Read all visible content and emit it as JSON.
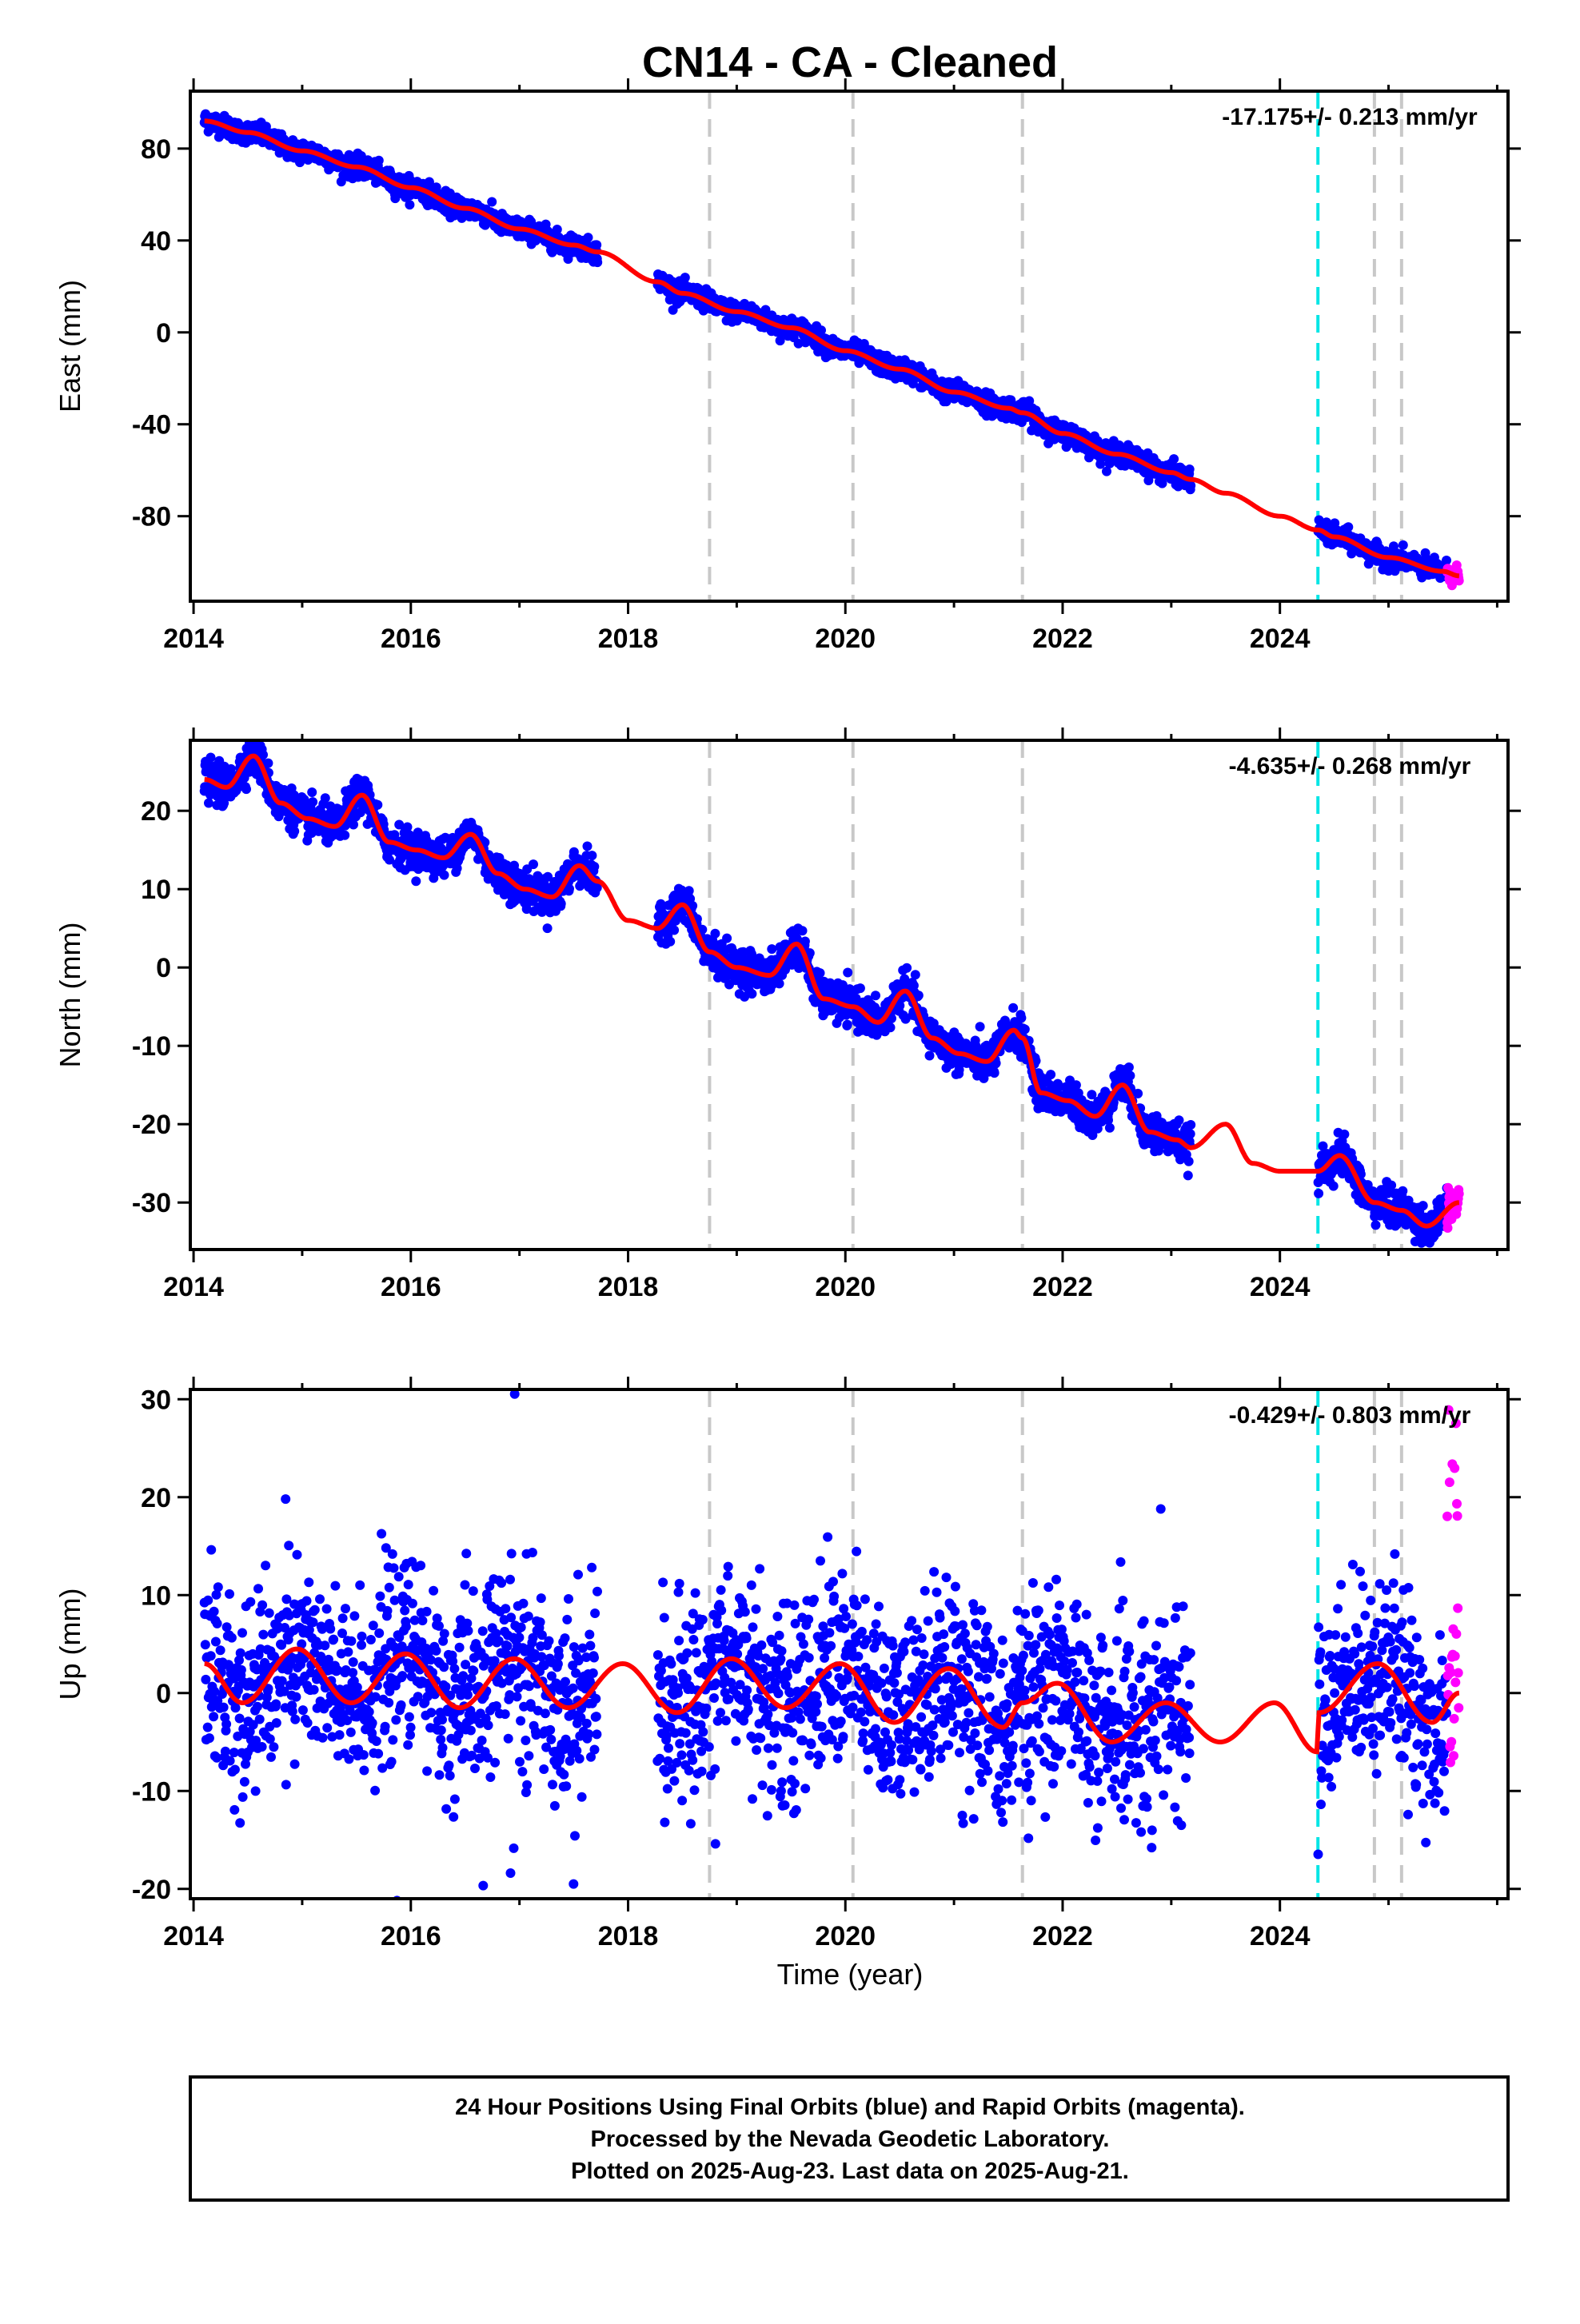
{
  "title": "CN14  - CA - Cleaned",
  "xlabel": "Time (year)",
  "x_ticks": [
    2014,
    2016,
    2018,
    2020,
    2022,
    2024
  ],
  "colors": {
    "final_orbits": "#0000ff",
    "rapid_orbits": "#ff00ff",
    "model": "#ff0000",
    "antenna_change": "#00e5e5",
    "event": "#c8c8c8"
  },
  "event_lines": [
    2018.75,
    2020.07,
    2021.63,
    2024.87,
    2025.12
  ],
  "antenna_line": 2024.35,
  "data_gaps": [
    [
      2017.72,
      2018.27
    ],
    [
      2023.18,
      2024.35
    ]
  ],
  "rapid_start": 2025.54,
  "xlim": [
    2013.97,
    2026.1
  ],
  "footer": {
    "line1": "24 Hour Positions Using Final Orbits (blue) and Rapid Orbits (magenta).",
    "line2": "Processed by the Nevada Geodetic Laboratory.",
    "line3": "Plotted on 2025-Aug-23. Last data on 2025-Aug-21."
  },
  "chart_data": [
    {
      "type": "scatter",
      "component": "east",
      "ylabel": "East (mm)",
      "rate_text": "-17.175+/- 0.213 mm/yr",
      "ylim": [
        -117,
        105
      ],
      "y_ticks": [
        -80,
        -40,
        0,
        40,
        80
      ],
      "noise": 2.2,
      "model": {
        "x": [
          2014.1,
          2014.5,
          2015.0,
          2015.5,
          2016.0,
          2016.5,
          2017.0,
          2017.5,
          2017.72,
          2018.27,
          2018.5,
          2019.0,
          2019.5,
          2020.0,
          2020.5,
          2021.0,
          2021.5,
          2021.63,
          2022.0,
          2022.5,
          2023.0,
          2023.18,
          2023.5,
          2024.0,
          2024.35,
          2024.5,
          2025.0,
          2025.5,
          2025.65
        ],
        "y": [
          92,
          87,
          79,
          72,
          63,
          54,
          45,
          38,
          35,
          22,
          17,
          9,
          2,
          -8,
          -16,
          -26,
          -33,
          -35,
          -44,
          -53,
          -61,
          -64,
          -70,
          -80,
          -86,
          -89,
          -98,
          -104,
          -106
        ]
      }
    },
    {
      "type": "scatter",
      "component": "north",
      "ylabel": "North (mm)",
      "rate_text": "-4.635+/- 0.268 mm/yr",
      "ylim": [
        -36,
        29
      ],
      "y_ticks": [
        -30,
        -20,
        -10,
        0,
        10,
        20
      ],
      "noise": 1.2,
      "model": {
        "x": [
          2014.1,
          2014.3,
          2014.55,
          2014.8,
          2015.05,
          2015.3,
          2015.55,
          2015.8,
          2016.05,
          2016.3,
          2016.55,
          2016.8,
          2017.05,
          2017.3,
          2017.55,
          2017.72,
          2018.0,
          2018.27,
          2018.5,
          2018.75,
          2019.0,
          2019.3,
          2019.55,
          2019.8,
          2020.07,
          2020.3,
          2020.55,
          2020.8,
          2021.05,
          2021.3,
          2021.55,
          2021.63,
          2021.8,
          2022.05,
          2022.3,
          2022.55,
          2022.8,
          2023.05,
          2023.18,
          2023.5,
          2023.75,
          2024.0,
          2024.35,
          2024.55,
          2024.87,
          2025.12,
          2025.35,
          2025.65
        ],
        "y": [
          24,
          23,
          27,
          21,
          19,
          18,
          22,
          16,
          15,
          14,
          17,
          12,
          10,
          9,
          13,
          11,
          6,
          5,
          8,
          2,
          0,
          -1,
          3,
          -4,
          -5,
          -7,
          -3,
          -9,
          -11,
          -12,
          -8,
          -9,
          -16,
          -17,
          -19,
          -15,
          -21,
          -22,
          -23,
          -20,
          -25,
          -26,
          -26,
          -24,
          -30,
          -31,
          -33,
          -30
        ]
      }
    },
    {
      "type": "scatter",
      "component": "up",
      "ylabel": "Up (mm)",
      "rate_text": "-0.429+/- 0.803 mm/yr",
      "ylim": [
        -21,
        31
      ],
      "y_ticks": [
        -20,
        -10,
        0,
        10,
        20,
        30
      ],
      "noise": 4.8,
      "model": {
        "x": [
          2014.1,
          2014.45,
          2014.95,
          2015.45,
          2015.95,
          2016.45,
          2016.95,
          2017.45,
          2017.95,
          2018.45,
          2018.95,
          2019.45,
          2019.95,
          2020.45,
          2020.95,
          2021.45,
          2021.63,
          2021.95,
          2022.45,
          2022.95,
          2023.45,
          2023.95,
          2024.34,
          2024.36,
          2024.9,
          2025.4,
          2025.65
        ],
        "y": [
          3,
          -1,
          4.5,
          -1,
          4,
          -1.5,
          3.5,
          -1.5,
          3,
          -2,
          3.5,
          -1.5,
          3,
          -3,
          2.5,
          -3.5,
          -1,
          1,
          -5,
          -1,
          -5,
          -1,
          -6,
          -2,
          3,
          -3,
          0
        ]
      }
    }
  ]
}
